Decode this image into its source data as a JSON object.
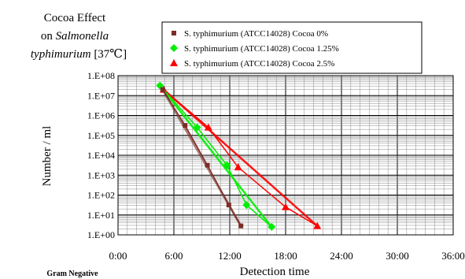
{
  "chart_data": {
    "type": "line",
    "title_line1": "Cocoa Effect",
    "title_line2_prefix": "on ",
    "title_line2_italic": "Salmonella",
    "title_line3_italic": "typhimurium",
    "title_line3_suffix": "[37℃]",
    "xlabel": "Detection time",
    "ylabel": "Number / ml",
    "footnote": "Gram Negative",
    "x_ticks": [
      "0:00",
      "6:00",
      "12:00",
      "18:00",
      "24:00",
      "30:00",
      "36:00"
    ],
    "x_tick_hours": [
      0,
      6,
      12,
      18,
      24,
      30,
      36
    ],
    "xlim_hours": [
      0,
      36
    ],
    "y_ticks": [
      "1.E+00",
      "1.E+01",
      "1.E+02",
      "1.E+03",
      "1.E+04",
      "1.E+05",
      "1.E+06",
      "1.E+07",
      "1.E+08"
    ],
    "y_tick_exponents": [
      0,
      1,
      2,
      3,
      4,
      5,
      6,
      7,
      8
    ],
    "ylim_log10": [
      0,
      8
    ],
    "y_scale": "log",
    "grid": true,
    "legend_position": "top",
    "series": [
      {
        "name": "S. typhimurium (ATCC14028) Cocoa   0%",
        "color": "#7b2d26",
        "marker": "square",
        "x_hours": [
          4.8,
          7.2,
          9.6,
          11.9,
          13.2
        ],
        "y_log10": [
          7.3,
          5.5,
          3.5,
          1.5,
          0.45
        ]
      },
      {
        "name": "S. typhimurium (ATCC14028) Cocoa   1.25%",
        "color": "#00ee00",
        "marker": "diamond",
        "x_hours": [
          4.5,
          8.5,
          11.7,
          13.8,
          16.5
        ],
        "y_log10": [
          7.5,
          5.4,
          3.5,
          1.5,
          0.4
        ]
      },
      {
        "name": "S. typhimurium (ATCC14028) Cocoa   2.5%",
        "color": "#ff0000",
        "marker": "triangle",
        "x_hours": [
          4.9,
          9.7,
          12.9,
          18.0,
          21.4
        ],
        "y_log10": [
          7.3,
          5.4,
          3.4,
          1.4,
          0.45
        ]
      }
    ]
  }
}
